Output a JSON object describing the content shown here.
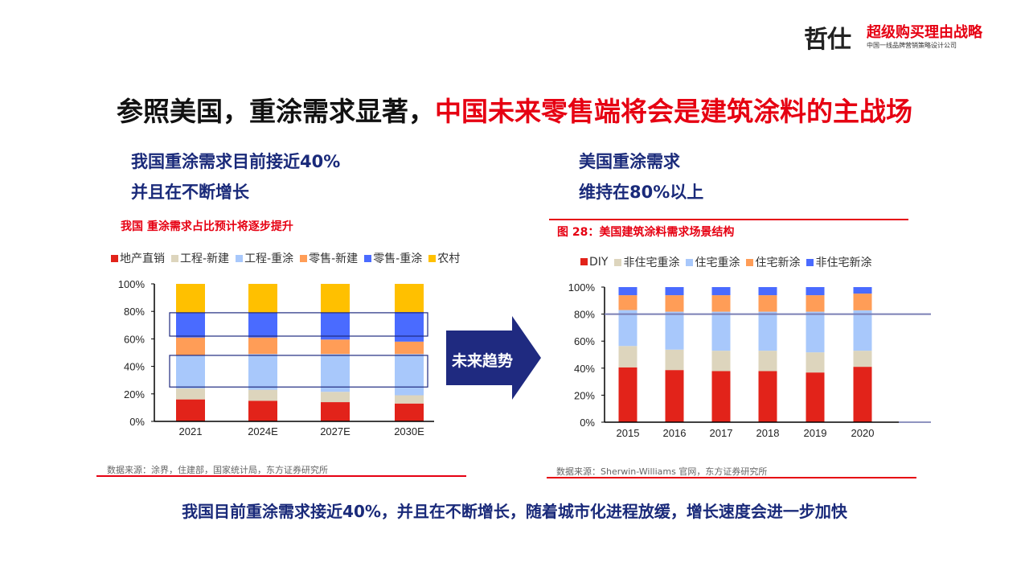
{
  "logo": {
    "brand": "哲仕",
    "slogan": "超级购买理由战略",
    "tagline": "中国一线品牌营销策略设计公司"
  },
  "title": {
    "black": "参照美国，重涂需求显著，",
    "red": "中国未来零售端将会是建筑涂料的主战场"
  },
  "left": {
    "line1": "我国重涂需求目前接近40%",
    "line2": "并且在不断增长",
    "source": "数据来源：涂界，住建部，国家统计局，东方证券研究所"
  },
  "right": {
    "line1": "美国重涂需求",
    "line2": "维持在80%以上",
    "source": "数据来源：Sherwin-Williams 官网，东方证券研究所"
  },
  "arrow": {
    "label": "未来趋势"
  },
  "bottom": "我国目前重涂需求接近40%，并且在不断增长，随着城市化进程放缓，增长速度会进一步加快",
  "chart_data": [
    {
      "type": "bar",
      "stacked": true,
      "title_prefix": "我国",
      "title": "重涂需求占比预计将逐步提升",
      "categories": [
        "2021",
        "2024E",
        "2027E",
        "2030E"
      ],
      "ylim": [
        0,
        100
      ],
      "yticks": [
        "0%",
        "20%",
        "40%",
        "60%",
        "80%",
        "100%"
      ],
      "legend_position": "top",
      "highlight_boxes": [
        [
          62,
          79
        ],
        [
          25,
          48
        ]
      ],
      "series": [
        {
          "name": "地产直销",
          "color": "#e2231a",
          "values": [
            16,
            15,
            14,
            13
          ]
        },
        {
          "name": "工程-新建",
          "color": "#ddd5bd",
          "values": [
            8,
            8,
            7.5,
            6
          ]
        },
        {
          "name": "工程-重涂",
          "color": "#a8c8fb",
          "values": [
            24,
            26,
            27.5,
            30
          ]
        },
        {
          "name": "零售-新建",
          "color": "#ff9d57",
          "values": [
            13,
            12,
            10.5,
            9
          ]
        },
        {
          "name": "零售-重涂",
          "color": "#4a6bff",
          "values": [
            18,
            18,
            19.5,
            21.5
          ]
        },
        {
          "name": "农村",
          "color": "#ffc000",
          "values": [
            21,
            21,
            21,
            20.5
          ]
        }
      ]
    },
    {
      "type": "bar",
      "stacked": true,
      "title": "图 28：美国建筑涂料需求场景结构",
      "categories": [
        "2015",
        "2016",
        "2017",
        "2018",
        "2019",
        "2020"
      ],
      "ylim": [
        0,
        100
      ],
      "yticks": [
        "0%",
        "20%",
        "40%",
        "60%",
        "80%",
        "100%"
      ],
      "legend_position": "top",
      "reference_line": 80,
      "series": [
        {
          "name": "DIY",
          "color": "#e2231a",
          "values": [
            40.6,
            38.6,
            37.8,
            37.8,
            36.8,
            41
          ]
        },
        {
          "name": "非住宅重涂",
          "color": "#ddd5bd",
          "values": [
            15.8,
            15.1,
            15.1,
            15.1,
            14.9,
            11.9
          ]
        },
        {
          "name": "住宅重涂",
          "color": "#a8c8fb",
          "values": [
            26.6,
            28.1,
            28.9,
            28.9,
            30.1,
            29.9
          ]
        },
        {
          "name": "住宅新涂",
          "color": "#ff9d57",
          "values": [
            11,
            12.2,
            12.2,
            12.2,
            12.2,
            12.4
          ]
        },
        {
          "name": "非住宅新涂",
          "color": "#4a6bff",
          "values": [
            6,
            6,
            6,
            6,
            6,
            4.8
          ]
        }
      ]
    }
  ]
}
